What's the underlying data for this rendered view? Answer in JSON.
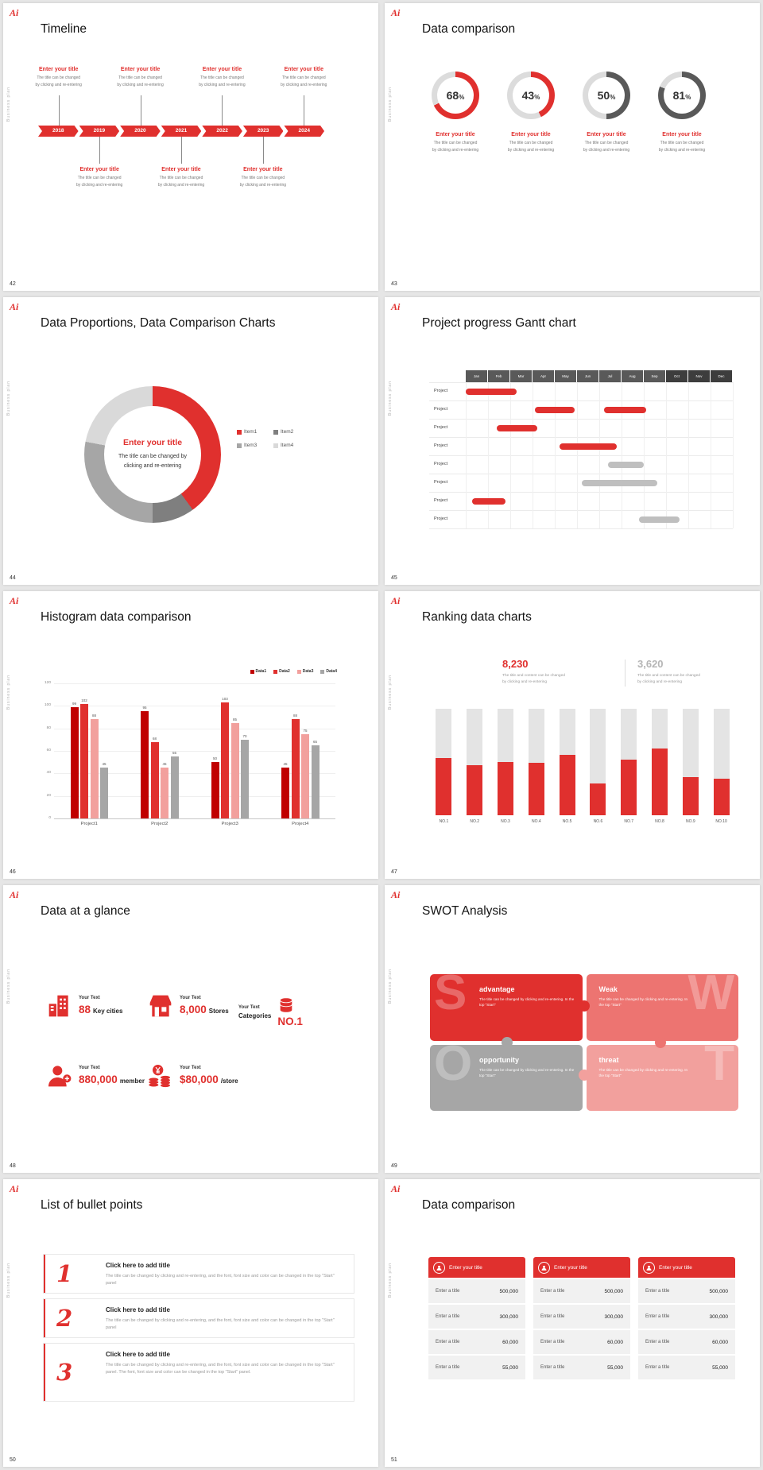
{
  "common": {
    "logo": "Ai",
    "sidebar_text": "Business plan",
    "colors": {
      "accent": "#e0302e",
      "dark_gray": "#595959",
      "mid_gray": "#a6a6a6",
      "light_gray": "#d9d9d9",
      "pink": "#f2a09d",
      "red_light": "#ed7471",
      "dark_red": "#c00000"
    }
  },
  "placeholder": {
    "title": "Enter your title",
    "line1": "The title can be changed",
    "line2": "by clicking and re-entering",
    "percent_sign": "%"
  },
  "slides": {
    "timeline": {
      "number": "42",
      "title": "Timeline",
      "years": [
        "2018",
        "2019",
        "2020",
        "2021",
        "2022",
        "2023",
        "2024"
      ],
      "top_positions": [
        0,
        2,
        4,
        6
      ],
      "bottom_positions": [
        1,
        3,
        5
      ]
    },
    "donut_compare": {
      "number": "43",
      "title": "Data comparison",
      "chart_data": {
        "type": "donut-progress",
        "values": [
          68,
          43,
          50,
          81
        ],
        "colors": [
          "#e0302e",
          "#e0302e",
          "#595959",
          "#595959"
        ],
        "track_color": "#dcdcdc"
      }
    },
    "proportions": {
      "number": "44",
      "title": "Data Proportions, Data Comparison Charts",
      "center_title": "Enter your title",
      "center_text": "The title can be changed by clicking and re-entering",
      "chart_data": {
        "type": "pie",
        "labels": [
          "Item1",
          "Item2",
          "Item3",
          "Item4"
        ],
        "values": [
          40,
          10,
          28,
          22
        ],
        "colors": [
          "#e0302e",
          "#7f7f7f",
          "#a6a6a6",
          "#d9d9d9"
        ]
      }
    },
    "gantt": {
      "number": "45",
      "title": "Project progress Gantt chart",
      "months": [
        "Jan",
        "Feb",
        "Mar",
        "Apr",
        "May",
        "Jun",
        "Jul",
        "Aug",
        "Sep",
        "Oct",
        "Nov",
        "Dec"
      ],
      "header_dark_from": 9,
      "row_label": "Project",
      "chart_data": {
        "type": "gantt",
        "rows": [
          {
            "bars": [
              {
                "start": 0,
                "span": 2.3,
                "color": "red"
              }
            ]
          },
          {
            "bars": [
              {
                "start": 3.1,
                "span": 1.8,
                "color": "red"
              },
              {
                "start": 6.2,
                "span": 1.9,
                "color": "red"
              }
            ]
          },
          {
            "bars": [
              {
                "start": 1.4,
                "span": 1.8,
                "color": "red"
              }
            ]
          },
          {
            "bars": [
              {
                "start": 4.2,
                "span": 2.6,
                "color": "red"
              }
            ]
          },
          {
            "bars": [
              {
                "start": 6.4,
                "span": 1.6,
                "color": "gray"
              }
            ]
          },
          {
            "bars": [
              {
                "start": 5.2,
                "span": 3.4,
                "color": "gray"
              }
            ]
          },
          {
            "bars": [
              {
                "start": 0.3,
                "span": 1.5,
                "color": "red"
              }
            ]
          },
          {
            "bars": [
              {
                "start": 7.8,
                "span": 1.8,
                "color": "gray"
              }
            ]
          }
        ]
      }
    },
    "histogram": {
      "number": "46",
      "title": "Histogram data comparison",
      "chart_data": {
        "type": "bar",
        "categories": [
          "Project1",
          "Project2",
          "Project3",
          "Project4"
        ],
        "series": [
          {
            "name": "Data1",
            "color": "#c00000",
            "values": [
              99,
              95,
              50,
              45
            ]
          },
          {
            "name": "Data2",
            "color": "#e0302e",
            "values": [
              102,
              68,
              103,
              88
            ]
          },
          {
            "name": "Data3",
            "color": "#f2a09d",
            "values": [
              88,
              45,
              85,
              75
            ]
          },
          {
            "name": "Data4",
            "color": "#a6a6a6",
            "values": [
              45,
              55,
              70,
              65
            ]
          }
        ],
        "ylim": [
          0,
          120
        ],
        "yticks": [
          0,
          20,
          40,
          60,
          80,
          100,
          120
        ],
        "legend_position": "top-right"
      }
    },
    "ranking": {
      "number": "47",
      "title": "Ranking data charts",
      "stat_primary": {
        "value": "8,230",
        "line1": "The title and content can be changed",
        "line2": "by clicking and re-entering"
      },
      "stat_secondary": {
        "value": "3,620",
        "line1": "The title and content can be changed",
        "line2": "by clicking and re-entering"
      },
      "chart_data": {
        "type": "bar",
        "categories": [
          "NO.1",
          "NO.2",
          "NO.3",
          "NO.4",
          "NO.5",
          "NO.6",
          "NO.7",
          "NO.8",
          "NO.9",
          "NO.10"
        ],
        "values": [
          54,
          47,
          50,
          49,
          57,
          30,
          52,
          63,
          36,
          34
        ],
        "track_max": 100
      }
    },
    "glance": {
      "number": "48",
      "title": "Data at a glance",
      "stats": [
        {
          "icon": "building-icon",
          "label": "Your Text",
          "value": "88",
          "unit": "Key cities",
          "reversed": false
        },
        {
          "icon": "store-icon",
          "label": "Your Text",
          "value": "8,000",
          "unit": "Stores",
          "reversed": false
        },
        {
          "icon": "database-icon",
          "label": "Your Text",
          "value": "NO.1",
          "unit": "Categories",
          "reversed": true
        },
        {
          "icon": "member-icon",
          "label": "Your Text",
          "value": "880,000",
          "unit": "member",
          "reversed": false
        },
        {
          "icon": "coins-icon",
          "label": "Your Text",
          "value": "$80,000",
          "unit": "/store",
          "reversed": false
        }
      ]
    },
    "swot": {
      "number": "49",
      "title": "SWOT Analysis",
      "quadrants": [
        {
          "letter": "S",
          "title": "advantage",
          "text": "The title can be changed by clicking and re-entering. In the top \"Start\"",
          "color": "#e0302e",
          "side": "left"
        },
        {
          "letter": "W",
          "title": "Weak",
          "text": "The title can be changed by clicking and re-entering. In the top \"Start\"",
          "color": "#ed7471",
          "side": "right"
        },
        {
          "letter": "O",
          "title": "opportunity",
          "text": "The title can be changed by clicking and re-entering. In the top \"Start\"",
          "color": "#a6a6a6",
          "side": "left"
        },
        {
          "letter": "T",
          "title": "threat",
          "text": "The title can be changed by clicking and re-entering. In the top \"Start\"",
          "color": "#f2a09d",
          "side": "right"
        }
      ]
    },
    "bullets": {
      "number": "50",
      "title": "List of bullet points",
      "items": [
        {
          "num": "1",
          "title": "Click here to add title",
          "text": "The title can be changed by clicking and re-entering, and the font, font size and color can be changed in the top \"Start\" panel"
        },
        {
          "num": "2",
          "title": "Click here to add title",
          "text": "The title can be changed by clicking and re-entering, and the font, font size and color can be changed in the top \"Start\" panel"
        },
        {
          "num": "3",
          "title": "Click here to add title",
          "text": "The title can be changed by clicking and re-entering, and the font, font size and color can be changed in the top \"Start\" panel. The font, font size and color can be changed in the top \"Start\" panel."
        }
      ]
    },
    "tables": {
      "number": "51",
      "title": "Data comparison",
      "header": "Enter your title",
      "row_label": "Enter a title",
      "values": [
        "500,000",
        "300,000",
        "60,000",
        "55,000"
      ],
      "table_count": 3
    }
  }
}
